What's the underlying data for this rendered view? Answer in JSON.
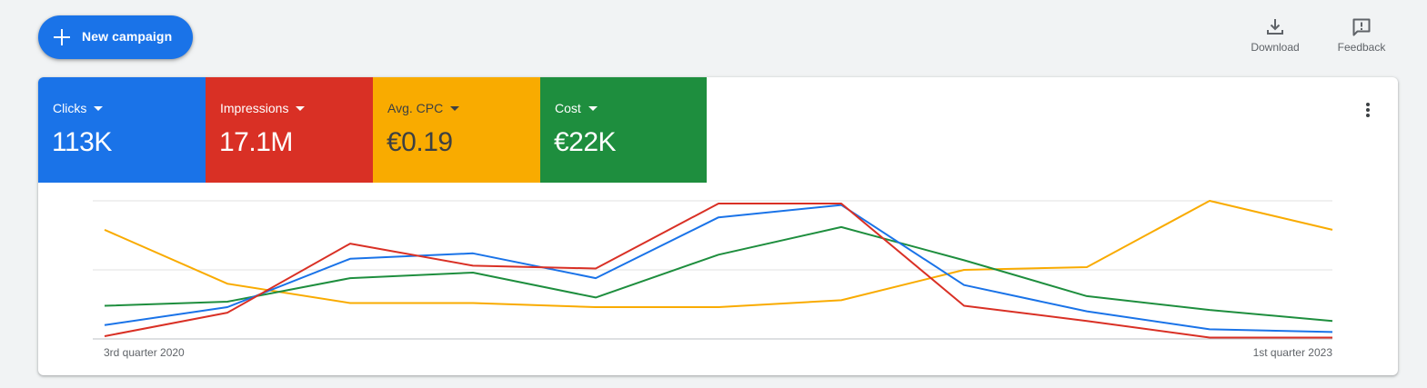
{
  "toolbar": {
    "new_campaign_label": "New campaign",
    "download_label": "Download",
    "feedback_label": "Feedback"
  },
  "scorecards": [
    {
      "label": "Clicks",
      "value": "113K",
      "color": "#1a73e8"
    },
    {
      "label": "Impressions",
      "value": "17.1M",
      "color": "#d93025"
    },
    {
      "label": "Avg. CPC",
      "value": "€0.19",
      "color": "#f9ab00"
    },
    {
      "label": "Cost",
      "value": "€22K",
      "color": "#1e8e3e"
    }
  ],
  "chart_data": {
    "type": "line",
    "x_start_label": "3rd quarter 2020",
    "x_end_label": "1st quarter 2023",
    "grid": true,
    "normalized": true,
    "ylim": [
      0,
      1
    ],
    "series": [
      {
        "name": "Clicks",
        "color": "#1a73e8",
        "values": [
          0.1,
          0.23,
          0.58,
          0.62,
          0.44,
          0.88,
          0.97,
          0.39,
          0.2,
          0.07,
          0.05
        ]
      },
      {
        "name": "Impressions",
        "color": "#d93025",
        "values": [
          0.02,
          0.19,
          0.69,
          0.53,
          0.51,
          0.98,
          0.98,
          0.24,
          0.13,
          0.01,
          0.01
        ]
      },
      {
        "name": "Avg. CPC",
        "color": "#f9ab00",
        "values": [
          0.79,
          0.4,
          0.26,
          0.26,
          0.23,
          0.23,
          0.28,
          0.5,
          0.52,
          1.0,
          0.79
        ]
      },
      {
        "name": "Cost",
        "color": "#1e8e3e",
        "values": [
          0.24,
          0.27,
          0.44,
          0.48,
          0.3,
          0.61,
          0.81,
          0.57,
          0.31,
          0.21,
          0.13
        ]
      }
    ]
  }
}
